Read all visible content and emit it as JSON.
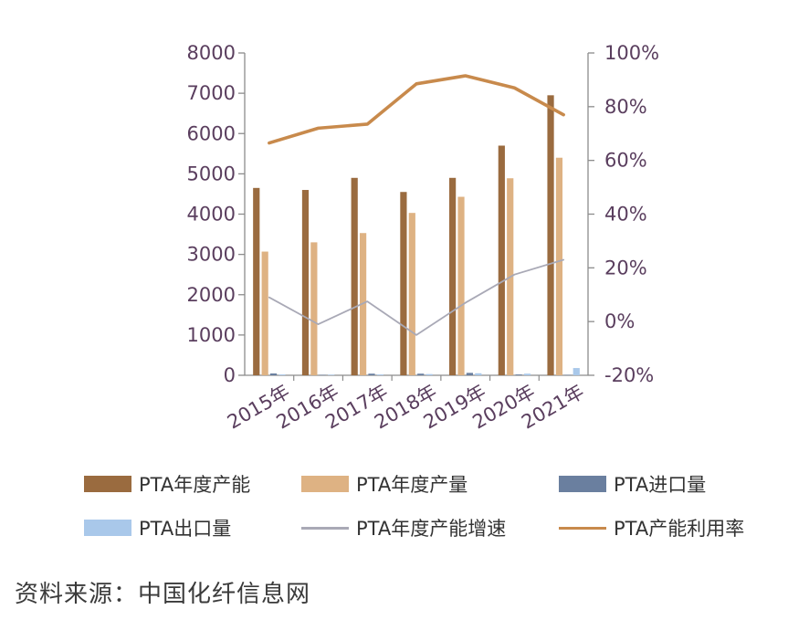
{
  "chart_data": {
    "type": "bar",
    "categories": [
      "2015年",
      "2016年",
      "2017年",
      "2018年",
      "2019年",
      "2020年",
      "2021年"
    ],
    "y_left": {
      "ylim": [
        0,
        8000
      ],
      "ticks": [
        "0",
        "1000",
        "2000",
        "3000",
        "4000",
        "5000",
        "6000",
        "7000",
        "8000"
      ]
    },
    "y_right": {
      "ylim": [
        -0.2,
        1.0
      ],
      "ticks": [
        "-20%",
        "0%",
        "20%",
        "40%",
        "60%",
        "80%",
        "100%"
      ]
    },
    "series": [
      {
        "name": "PTA年度产能",
        "kind": "bar",
        "axis": "left",
        "color": "#9a6b3f",
        "values": [
          4650,
          4600,
          4900,
          4550,
          4900,
          5700,
          6950
        ]
      },
      {
        "name": "PTA年度产量",
        "kind": "bar",
        "axis": "left",
        "color": "#deb283",
        "values": [
          3070,
          3300,
          3530,
          4030,
          4430,
          4890,
          5400
        ]
      },
      {
        "name": "PTA进口量",
        "kind": "bar",
        "axis": "left",
        "color": "#6a7f9f",
        "values": [
          45,
          10,
          40,
          40,
          60,
          20,
          10
        ]
      },
      {
        "name": "PTA出口量",
        "kind": "bar",
        "axis": "left",
        "color": "#a9c8ea",
        "values": [
          20,
          15,
          20,
          30,
          50,
          40,
          180
        ]
      },
      {
        "name": "PTA年度产能增速",
        "kind": "line",
        "axis": "right",
        "color": "#a9a9b6",
        "values": [
          0.09,
          -0.01,
          0.075,
          -0.05,
          0.07,
          0.175,
          0.23
        ]
      },
      {
        "name": "PTA产能利用率",
        "kind": "line",
        "axis": "right",
        "color": "#c88a4c",
        "values": [
          0.665,
          0.72,
          0.735,
          0.885,
          0.915,
          0.87,
          0.77
        ]
      }
    ],
    "grid": false,
    "legend_position": "bottom"
  },
  "source_text": "资料来源：中国化纤信息网"
}
